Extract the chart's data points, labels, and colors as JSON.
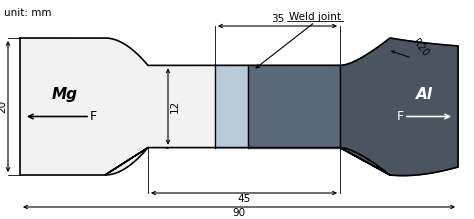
{
  "unit_label": "unit: mm",
  "weld_joint_label": "Weld joint",
  "mg_label": "Mg",
  "al_label": "Al",
  "f_label": "F",
  "r20_label": "R20",
  "dim_35": "35",
  "dim_45": "45",
  "dim_90": "90",
  "dim_12": "12",
  "dim_20": "20",
  "bg_color": "#ffffff",
  "black": "#000000",
  "white": "#ffffff",
  "mg_fill": "#f2f2f2",
  "weld_light_fill": "#b8ccd8",
  "weld_dark_fill": "#5a6878",
  "al_fill": "#4a5560",
  "lw": 1.2
}
